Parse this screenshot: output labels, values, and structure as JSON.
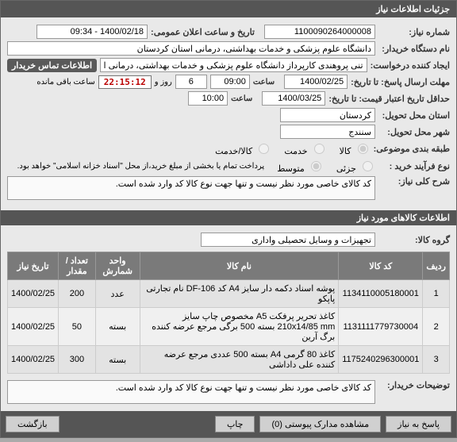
{
  "panel": {
    "title": "جزئیات اطلاعات نیاز"
  },
  "header": {
    "need_no_label": "شماره نیاز:",
    "need_no": "1100090264000008",
    "announce_label": "تاریخ و ساعت اعلان عمومی:",
    "announce": "1400/02/18 - 09:34",
    "buyer_label": "نام دستگاه خریدار:",
    "buyer": "دانشگاه علوم پزشکی و خدمات بهداشتی، درمانی استان کردستان",
    "creator_label": "ایجاد کننده درخواست:",
    "creator": "تنی پروهندی کارپرداز دانشگاه علوم پزشکی و خدمات بهداشتی، درمانی استان",
    "contact_badge": "اطلاعات تماس خریدار",
    "deadline_label": "مهلت ارسال پاسخ: تا تاریخ:",
    "deadline_date": "1400/02/25",
    "time_label": "ساعت",
    "deadline_time": "09:00",
    "days": "6",
    "days_label": "روز و",
    "countdown": "22:15:12",
    "remaining": "ساعت باقی مانده",
    "valid_label": "حداقل تاریخ اعتبار قیمت: تا تاریخ:",
    "valid_date": "1400/03/25",
    "valid_time": "10:00",
    "province_label": "استان محل تحویل:",
    "province": "کردستان",
    "city_label": "شهر محل تحویل:",
    "city": "سنندج",
    "category_label": "طبقه بندی موضوعی:",
    "cat_goods": "کالا",
    "cat_service": "خدمت",
    "cat_goods_service": "کالا/خدمت",
    "process_label": "نوع فرآیند خرید :",
    "proc_low": "جزئی",
    "proc_mid": "متوسط",
    "note": "پرداخت تمام یا بخشی از مبلغ خرید،از محل \"اسناد خزانه اسلامی\" خواهد بود.",
    "need_title_label": "شرح کلی نیاز:",
    "need_title": "کد کالای خاصی مورد نظر نیست و تنها جهت نوع کالا کد وارد شده است."
  },
  "goods": {
    "section": "اطلاعات کالاهای مورد نیاز",
    "group_label": "گروه کالا:",
    "group": "تجهیزات و وسایل تحصیلی واداری",
    "cols": {
      "row": "ردیف",
      "code": "کد کالا",
      "name": "نام کالا",
      "unit": "واحد شمارش",
      "qty": "تعداد / مقدار",
      "date": "تاریخ نیاز"
    },
    "rows": [
      {
        "idx": "1",
        "code": "1134110005180001",
        "name": "پوشه اسناد دکمه دار سایز A4 کد DF-106 نام تجارتی پاپکو",
        "unit": "عدد",
        "qty": "200",
        "date": "1400/02/25"
      },
      {
        "idx": "2",
        "code": "1131111779730004",
        "name": "کاغذ تحریر پرفکت A5 مخصوص چاپ سایز 210x14/85 mm بسته 500 برگی مرجع عرضه کننده برگ آرین",
        "unit": "بسته",
        "qty": "50",
        "date": "1400/02/25"
      },
      {
        "idx": "3",
        "code": "1175240296300001",
        "name": "کاغذ 80 گرمی A4 بسته 500 عددی مرجع عرضه کننده علی داداشی",
        "unit": "بسته",
        "qty": "300",
        "date": "1400/02/25"
      }
    ],
    "buyer_notes_label": "توضیحات خریدار:",
    "buyer_notes": "کد کالای خاصی مورد نظر نیست و تنها جهت نوع کالا کد وارد شده است."
  },
  "footer": {
    "respond": "پاسخ به نیاز",
    "attachments": "مشاهده مدارک پیوستی  (0)",
    "print": "چاپ",
    "back": "بازگشت"
  }
}
